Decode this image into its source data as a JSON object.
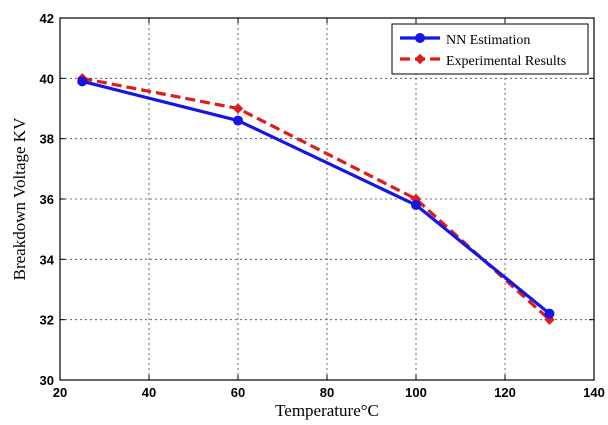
{
  "chart_data": {
    "type": "line",
    "xlabel": "Temperature°C",
    "ylabel": "Breakdown Voltage KV",
    "xlim": [
      20,
      140
    ],
    "ylim": [
      30,
      42
    ],
    "xticks": [
      20,
      40,
      60,
      80,
      100,
      120,
      140
    ],
    "yticks": [
      30,
      32,
      34,
      36,
      38,
      40,
      42
    ],
    "grid": true,
    "legend_position": "top-right",
    "series": [
      {
        "name": "NN Estimation",
        "color": "#1515e6",
        "style": "solid",
        "marker": "circle",
        "x": [
          25,
          60,
          100,
          130
        ],
        "y": [
          39.9,
          38.6,
          35.8,
          32.2
        ]
      },
      {
        "name": "Experimental Results",
        "color": "#e01b1b",
        "style": "dashed",
        "marker": "diamond",
        "x": [
          25,
          60,
          100,
          130
        ],
        "y": [
          40.0,
          39.0,
          36.0,
          32.0
        ]
      }
    ]
  }
}
